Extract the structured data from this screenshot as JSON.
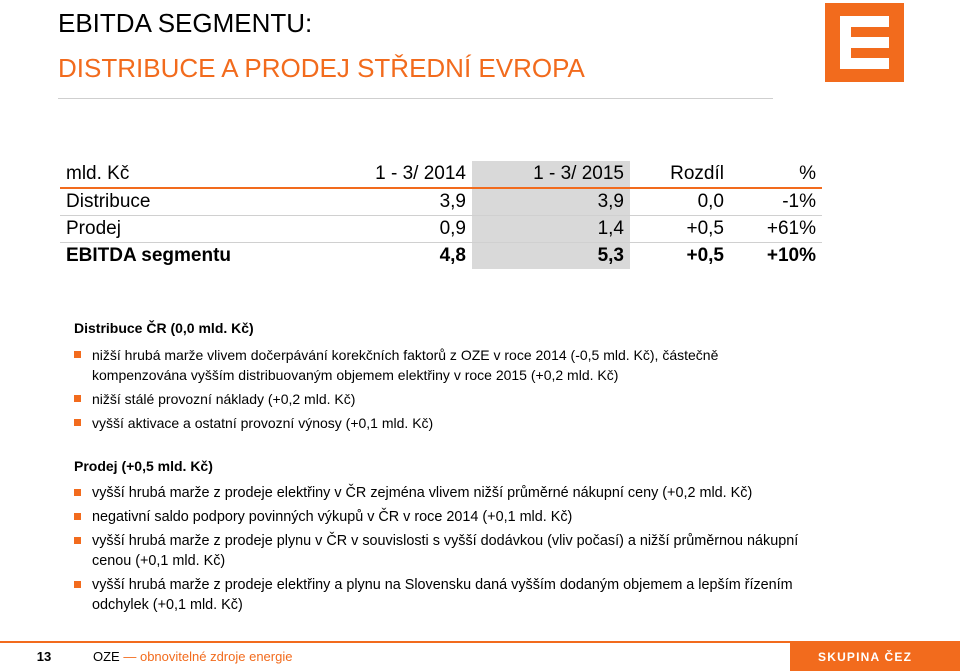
{
  "header": {
    "title_line1": "EBITDA SEGMENTU:",
    "title_line2": "DISTRIBUCE A PRODEJ STŘEDNÍ EVROPA",
    "accent_color": "#f26b1d",
    "logo_icon": "cez-logo-icon"
  },
  "table": {
    "headers": [
      "mld. Kč",
      "1 - 3/ 2014",
      "1 - 3/ 2015",
      "Rozdíl",
      "%"
    ],
    "rows": [
      [
        "Distribuce",
        "3,9",
        "3,9",
        "0,0",
        "-1%"
      ],
      [
        "Prodej",
        "0,9",
        "1,4",
        "+0,5",
        "+61%"
      ],
      [
        "EBITDA segmentu",
        "4,8",
        "5,3",
        "+0,5",
        "+10%"
      ]
    ]
  },
  "sections": [
    {
      "heading": "Distribuce ČR (0,0 mld. Kč)",
      "bullets": [
        "nižší hrubá marže vlivem dočerpávání korekčních faktorů z OZE v roce 2014 (-0,5 mld. Kč), částečně kompenzována vyšším distribuovaným objemem elektřiny v roce 2015 (+0,2 mld. Kč)",
        "nižší stálé provozní náklady (+0,2 mld. Kč)",
        "vyšší aktivace a ostatní provozní výnosy (+0,1 mld. Kč)"
      ]
    },
    {
      "heading": "Prodej (+0,5 mld. Kč)",
      "bullets": [
        "vyšší hrubá marže z prodeje elektřiny v ČR zejména vlivem nižší průměrné nákupní ceny (+0,2 mld. Kč)",
        "negativní saldo podpory povinných výkupů v ČR v roce 2014 (+0,1 mld. Kč)",
        "vyšší hrubá marže z prodeje plynu v ČR v souvislosti s vyšší dodávkou (vliv počasí) a nižší průměrnou nákupní cenou (+0,1 mld. Kč)",
        "vyšší hrubá marže z prodeje elektřiny a plynu na Slovensku daná vyšším dodaným objemem a lepším řízením odchylek (+0,1 mld. Kč)"
      ]
    }
  ],
  "footer": {
    "page_number": "13",
    "abbr": "OZE",
    "abbr_desc": "— obnovitelné zdroje energie",
    "brand": "SKUPINA ČEZ"
  }
}
